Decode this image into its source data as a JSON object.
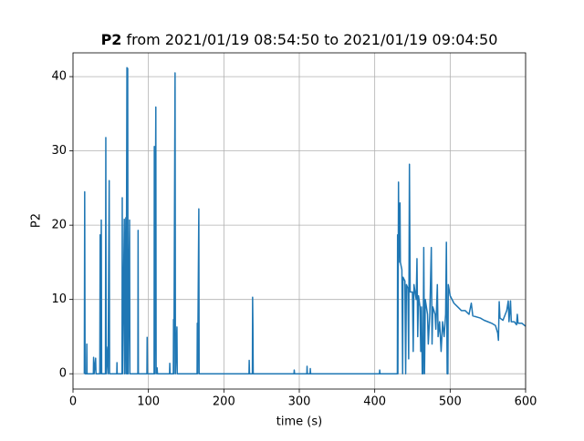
{
  "chart_data": {
    "type": "line",
    "title": {
      "bold": "P2",
      "rest": " from 2021/01/19 08:54:50 to 2021/01/19 09:04:50"
    },
    "xlabel": "time (s)",
    "ylabel": "P2",
    "xlim": [
      0,
      600
    ],
    "xticks": [
      0,
      100,
      200,
      300,
      400,
      500,
      600
    ],
    "ylim": [
      -2.06,
      43.2
    ],
    "yticks": [
      0,
      10,
      20,
      30,
      40
    ],
    "grid": true,
    "color": "#1f77b4",
    "x": [
      15,
      15.5,
      16,
      18,
      18.3,
      18.6,
      27,
      27.3,
      28,
      30,
      30.5,
      35.5,
      36,
      36.5,
      37.5,
      38,
      43,
      43.5,
      44,
      46,
      46.5,
      48,
      48.5,
      58,
      58.3,
      58.6,
      65,
      65.3,
      65.7,
      68,
      68.4,
      70,
      70.4,
      71.5,
      72,
      72.5,
      73,
      75,
      75.4,
      86,
      86.3,
      86.7,
      98,
      98.3,
      98.7,
      107.5,
      107.8,
      108.2,
      109.8,
      110.2,
      111.5,
      112,
      128,
      128.3,
      128.7,
      133,
      133.3,
      133.7,
      135.3,
      135.8,
      137.8,
      138.2,
      164.5,
      164.8,
      165.2,
      166.8,
      167.2,
      233.3,
      233.6,
      234,
      237.8,
      238.1,
      238.5,
      238.9,
      293,
      293.3,
      293.7,
      310,
      310.3,
      310.7,
      314.3,
      314.6,
      315,
      406.3,
      406.6,
      407,
      430,
      430.3,
      430.7,
      431.5,
      432,
      433.5,
      434,
      436,
      437,
      437.5,
      440,
      441,
      442,
      444,
      445,
      446,
      447,
      450,
      451,
      452,
      455,
      456,
      457,
      458,
      460,
      461,
      462,
      463,
      464,
      465,
      466,
      467,
      470,
      471,
      473,
      475,
      476,
      477,
      480,
      481,
      483,
      484,
      486,
      488,
      490,
      492,
      494,
      495,
      496,
      497,
      497.5,
      500,
      505,
      510,
      515,
      520,
      525,
      528,
      530,
      540,
      545,
      550,
      555,
      560,
      563,
      564,
      565,
      566,
      570,
      575,
      577,
      578,
      580,
      581,
      585,
      588,
      589,
      590,
      595,
      600
    ],
    "values": [
      0,
      24.5,
      0,
      0,
      4,
      0,
      0,
      2.2,
      0,
      2.1,
      0,
      0,
      18.7,
      0,
      20.7,
      0,
      0,
      31.8,
      0,
      3.6,
      0,
      26,
      0,
      0,
      1.5,
      0,
      0,
      23.7,
      0,
      20.8,
      0,
      21,
      0,
      41.2,
      0,
      41.1,
      0,
      20.7,
      0,
      0,
      19.3,
      0,
      0,
      4.9,
      0,
      0,
      30.6,
      0,
      35.9,
      0,
      0.8,
      0,
      0,
      1.4,
      0,
      0,
      7.3,
      0,
      40.5,
      0,
      6.3,
      0,
      0,
      6.8,
      0,
      22.2,
      0,
      0,
      1.8,
      0,
      0,
      10.3,
      6.5,
      0,
      0,
      0.5,
      0,
      0,
      1,
      0,
      0,
      0.7,
      0,
      0,
      0.5,
      0,
      0,
      18.7,
      0,
      25.8,
      15,
      23,
      15,
      14,
      0,
      13,
      12.5,
      0,
      12,
      11.5,
      2,
      28.2,
      11,
      11,
      3,
      12,
      10,
      15.5,
      5,
      10.5,
      9,
      3,
      9,
      0,
      0,
      17,
      0,
      10,
      8,
      4,
      8,
      17,
      4,
      9,
      8,
      6,
      12,
      5,
      7,
      3,
      7,
      5,
      8,
      17.7,
      0,
      0,
      12,
      10.5,
      9.5,
      9,
      8.5,
      8.5,
      8,
      9.5,
      7.8,
      7.5,
      7.2,
      7,
      6.8,
      6.5,
      5.5,
      4.5,
      9.7,
      7.5,
      7.2,
      8.5,
      9.8,
      7,
      9.8,
      7,
      7,
      6.6,
      8,
      6.8,
      6.8,
      6.4
    ]
  }
}
